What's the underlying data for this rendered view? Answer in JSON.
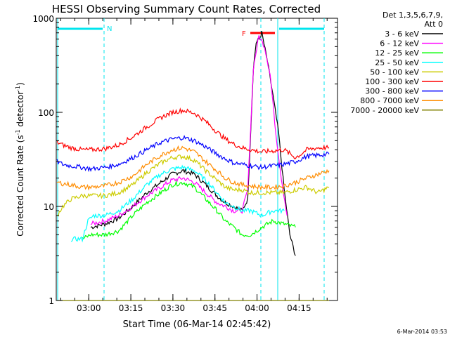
{
  "chart_data": {
    "type": "line",
    "title": "HESSI Observing Summary Count Rates, Corrected",
    "xlabel": "Start Time (06-Mar-14 02:45:42)",
    "ylabel_main": "Corrected Count Rate (s",
    "ylabel_sup1": "-1",
    "ylabel_mid": " detector",
    "ylabel_sup2": "-1",
    "ylabel_end": ")",
    "yscale": "log",
    "ylim": [
      1,
      1000
    ],
    "xlim_minutes": [
      2.7,
      103
    ],
    "x_ticks": [
      {
        "minute": 14.3,
        "label": "03:00"
      },
      {
        "minute": 29.3,
        "label": "03:15"
      },
      {
        "minute": 44.3,
        "label": "03:30"
      },
      {
        "minute": 59.3,
        "label": "03:45"
      },
      {
        "minute": 74.3,
        "label": "04:00"
      },
      {
        "minute": 89.3,
        "label": "04:15"
      }
    ],
    "y_ticks": [
      {
        "value": 1,
        "label": "1"
      },
      {
        "value": 10,
        "label": "10"
      },
      {
        "value": 100,
        "label": "100"
      },
      {
        "value": 1000,
        "label": "1000"
      }
    ],
    "legend_title_1": "Det 1,3,5,6,7,9,",
    "legend_title_2": "Att 0",
    "legend_position": "right",
    "annotations": {
      "night_label": "N",
      "flare_label": "F",
      "date_stamp": "6-Mar-2014 03:53"
    },
    "series": [
      {
        "name": "3 - 6 keV",
        "color": "#000000",
        "points": [
          [
            15,
            6
          ],
          [
            20,
            6.5
          ],
          [
            25,
            7.5
          ],
          [
            30,
            10
          ],
          [
            35,
            14
          ],
          [
            40,
            18
          ],
          [
            44,
            22
          ],
          [
            48,
            24
          ],
          [
            52,
            22
          ],
          [
            56,
            17
          ],
          [
            60,
            13
          ],
          [
            63,
            11
          ],
          [
            66,
            10
          ],
          [
            69,
            9
          ],
          [
            71,
            12
          ],
          [
            73,
            300
          ],
          [
            74,
            550
          ],
          [
            75,
            600
          ],
          [
            76,
            700
          ],
          [
            78,
            350
          ],
          [
            80,
            150
          ],
          [
            82,
            60
          ],
          [
            84,
            15
          ],
          [
            86,
            5
          ],
          [
            88,
            3
          ]
        ]
      },
      {
        "name": "6 - 12 keV",
        "color": "#ff00ff",
        "points": [
          [
            15,
            6.5
          ],
          [
            20,
            7
          ],
          [
            25,
            8
          ],
          [
            30,
            10
          ],
          [
            35,
            13
          ],
          [
            40,
            16
          ],
          [
            44,
            19
          ],
          [
            48,
            20
          ],
          [
            52,
            18
          ],
          [
            56,
            14
          ],
          [
            60,
            11
          ],
          [
            63,
            10
          ],
          [
            66,
            9
          ],
          [
            69,
            9
          ],
          [
            71,
            15
          ],
          [
            73,
            300
          ],
          [
            75,
            650
          ],
          [
            77,
            500
          ],
          [
            79,
            250
          ],
          [
            81,
            60
          ],
          [
            83,
            20
          ],
          [
            85,
            8
          ]
        ]
      },
      {
        "name": "12 - 25 keV",
        "color": "#00ff00",
        "points": [
          [
            12,
            4.5
          ],
          [
            15,
            5
          ],
          [
            20,
            5
          ],
          [
            25,
            5.5
          ],
          [
            30,
            8
          ],
          [
            35,
            11
          ],
          [
            40,
            14
          ],
          [
            44,
            17
          ],
          [
            48,
            18
          ],
          [
            52,
            16
          ],
          [
            56,
            12
          ],
          [
            60,
            9
          ],
          [
            63,
            7
          ],
          [
            66,
            6
          ],
          [
            69,
            5
          ],
          [
            72,
            5
          ],
          [
            76,
            6
          ],
          [
            80,
            7
          ],
          [
            84,
            6.5
          ],
          [
            88,
            6
          ]
        ]
      },
      {
        "name": "25 - 50 keV",
        "color": "#00ffff",
        "points": [
          [
            8,
            4.5
          ],
          [
            12,
            4.5
          ],
          [
            14,
            7
          ],
          [
            16,
            8
          ],
          [
            20,
            8
          ],
          [
            25,
            9
          ],
          [
            30,
            12
          ],
          [
            35,
            17
          ],
          [
            40,
            22
          ],
          [
            44,
            25
          ],
          [
            48,
            26
          ],
          [
            52,
            24
          ],
          [
            56,
            19
          ],
          [
            60,
            14
          ],
          [
            63,
            11
          ],
          [
            66,
            10
          ],
          [
            69,
            9
          ],
          [
            72,
            9
          ],
          [
            76,
            8
          ],
          [
            80,
            9
          ],
          [
            84,
            9
          ]
        ]
      },
      {
        "name": "50 - 100 keV",
        "color": "#cccc00",
        "points": [
          [
            3,
            8
          ],
          [
            5,
            10
          ],
          [
            8,
            12
          ],
          [
            12,
            13
          ],
          [
            15,
            13
          ],
          [
            20,
            13
          ],
          [
            25,
            14
          ],
          [
            30,
            17
          ],
          [
            35,
            23
          ],
          [
            40,
            29
          ],
          [
            44,
            33
          ],
          [
            48,
            34
          ],
          [
            52,
            31
          ],
          [
            56,
            24
          ],
          [
            60,
            19
          ],
          [
            63,
            16
          ],
          [
            66,
            15
          ],
          [
            69,
            15
          ],
          [
            72,
            14
          ],
          [
            76,
            14
          ],
          [
            80,
            14
          ],
          [
            84,
            14
          ],
          [
            88,
            15
          ],
          [
            92,
            16
          ],
          [
            96,
            14
          ],
          [
            100,
            16
          ]
        ]
      },
      {
        "name": "100 - 300 keV",
        "color": "#ff0000",
        "points": [
          [
            3,
            48
          ],
          [
            5,
            45
          ],
          [
            8,
            42
          ],
          [
            12,
            40
          ],
          [
            15,
            40
          ],
          [
            20,
            41
          ],
          [
            25,
            45
          ],
          [
            30,
            55
          ],
          [
            35,
            70
          ],
          [
            40,
            88
          ],
          [
            44,
            100
          ],
          [
            48,
            105
          ],
          [
            52,
            98
          ],
          [
            56,
            80
          ],
          [
            60,
            62
          ],
          [
            63,
            52
          ],
          [
            66,
            46
          ],
          [
            69,
            42
          ],
          [
            72,
            40
          ],
          [
            76,
            38
          ],
          [
            80,
            39
          ],
          [
            84,
            40
          ],
          [
            88,
            33
          ],
          [
            90,
            36
          ],
          [
            92,
            40
          ],
          [
            96,
            42
          ],
          [
            100,
            42
          ]
        ]
      },
      {
        "name": "300 - 800 keV",
        "color": "#0000ff",
        "points": [
          [
            3,
            30
          ],
          [
            5,
            28
          ],
          [
            8,
            27
          ],
          [
            12,
            26
          ],
          [
            15,
            25
          ],
          [
            20,
            26
          ],
          [
            25,
            28
          ],
          [
            30,
            33
          ],
          [
            35,
            40
          ],
          [
            40,
            48
          ],
          [
            44,
            52
          ],
          [
            48,
            54
          ],
          [
            52,
            50
          ],
          [
            56,
            43
          ],
          [
            60,
            36
          ],
          [
            63,
            32
          ],
          [
            66,
            29
          ],
          [
            69,
            28
          ],
          [
            72,
            27
          ],
          [
            76,
            26
          ],
          [
            80,
            27
          ],
          [
            84,
            28
          ],
          [
            88,
            30
          ],
          [
            92,
            34
          ],
          [
            96,
            35
          ],
          [
            100,
            36
          ]
        ]
      },
      {
        "name": "800 - 7000 keV",
        "color": "#ff8c00",
        "points": [
          [
            3,
            18
          ],
          [
            5,
            17.5
          ],
          [
            8,
            17
          ],
          [
            12,
            16
          ],
          [
            15,
            16
          ],
          [
            20,
            16.5
          ],
          [
            25,
            18
          ],
          [
            30,
            21
          ],
          [
            35,
            28
          ],
          [
            40,
            35
          ],
          [
            44,
            40
          ],
          [
            48,
            42
          ],
          [
            52,
            38
          ],
          [
            56,
            30
          ],
          [
            60,
            24
          ],
          [
            63,
            20
          ],
          [
            66,
            18
          ],
          [
            69,
            17
          ],
          [
            72,
            16.5
          ],
          [
            76,
            16
          ],
          [
            80,
            16
          ],
          [
            84,
            16.5
          ],
          [
            88,
            18
          ],
          [
            92,
            20
          ],
          [
            96,
            22
          ],
          [
            100,
            24
          ]
        ]
      },
      {
        "name": "7000 - 20000 keV",
        "color": "#808000",
        "points": [
          [
            3,
            1
          ],
          [
            100,
            1
          ]
        ]
      }
    ]
  }
}
